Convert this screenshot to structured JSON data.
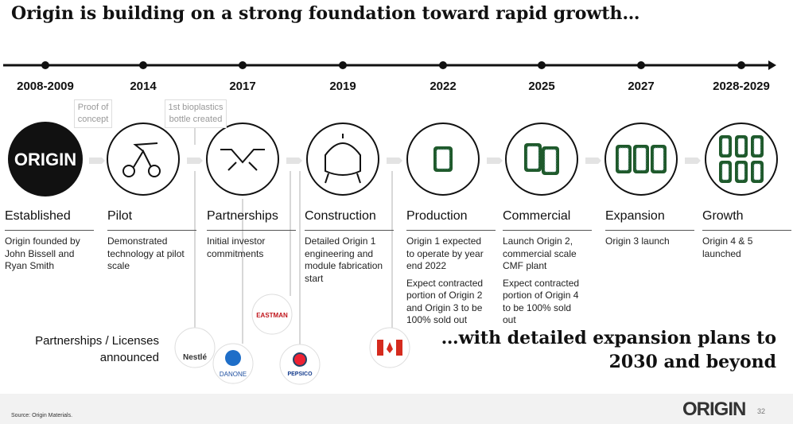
{
  "title": "Origin is building on a strong foundation toward rapid growth…",
  "timeline": [
    {
      "year": "2008-2009",
      "icon_text": "ORIGIN",
      "stage": "Established",
      "description": [
        "Origin founded by John Bissell and Ryan Smith"
      ]
    },
    {
      "year": "2014",
      "stage": "Pilot",
      "description": [
        "Demonstrated technology at pilot scale"
      ]
    },
    {
      "year": "2017",
      "stage": "Partnerships",
      "description": [
        "Initial investor commitments"
      ]
    },
    {
      "year": "2019",
      "stage": "Construction",
      "description": [
        "Detailed Origin 1 engineering and module fabrication start"
      ]
    },
    {
      "year": "2022",
      "stage": "Production",
      "description": [
        "Origin 1 expected to operate by year end 2022",
        "Expect contracted portion of Origin 2 and Origin 3 to be 100% sold out"
      ]
    },
    {
      "year": "2025",
      "stage": "Commercial",
      "description": [
        "Launch Origin 2, commercial scale CMF plant",
        "Expect contracted portion of Origin 4 to be 100% sold out"
      ]
    },
    {
      "year": "2027",
      "stage": "Expansion",
      "description": [
        "Origin 3 launch"
      ]
    },
    {
      "year": "2028-2029",
      "stage": "Growth",
      "description": [
        "Origin 4 & 5 launched"
      ]
    }
  ],
  "callouts": [
    "Proof of concept",
    "1st bioplastics bottle created"
  ],
  "partners_label": "Partnerships / Licenses announced",
  "partner_logos": [
    "Nestlé",
    "DANONE",
    "EASTMAN",
    "PEPSICO"
  ],
  "tagline": "…with detailed expansion plans to 2030 and beyond",
  "footer": {
    "source": "Source: Origin Materials.",
    "logo": "ORIGIN",
    "page": "32"
  }
}
